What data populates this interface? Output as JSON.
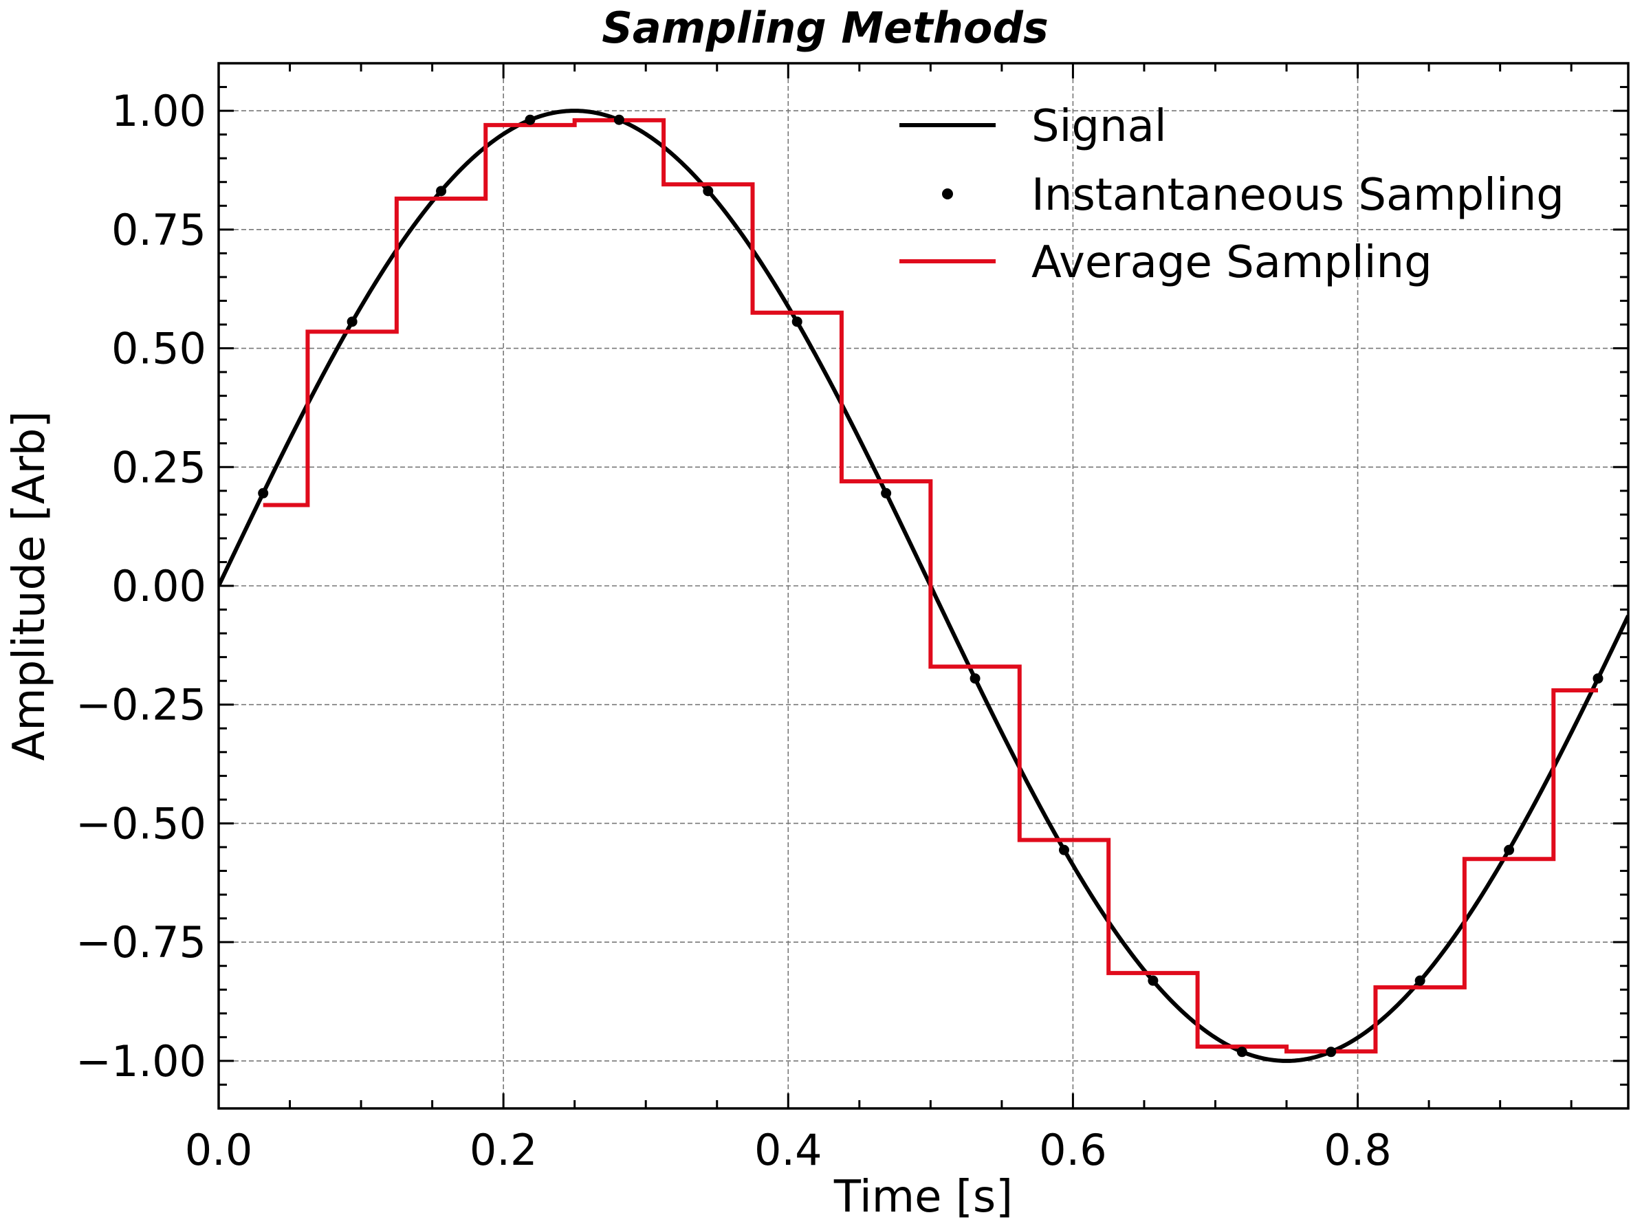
{
  "chart_data": {
    "type": "line",
    "title": "Sampling Methods",
    "xlabel": "Time [s]",
    "ylabel": "Amplitude [Arb]",
    "xlim": [
      0.0,
      0.99
    ],
    "ylim": [
      -1.1,
      1.1
    ],
    "x_ticks": [
      0.0,
      0.2,
      0.4,
      0.6,
      0.8
    ],
    "x_tick_labels": [
      "0.0",
      "0.2",
      "0.4",
      "0.6",
      "0.8"
    ],
    "y_ticks": [
      1.0,
      0.75,
      0.5,
      0.25,
      0.0,
      -0.25,
      -0.5,
      -0.75,
      -1.0
    ],
    "y_tick_labels": [
      "1.00",
      "0.75",
      "0.50",
      "0.25",
      "0.00",
      "−0.25",
      "−0.50",
      "−0.75",
      "−1.00"
    ],
    "grid": true,
    "legend_position": "top-right",
    "series": [
      {
        "name": "Signal",
        "kind": "line",
        "color": "#000000",
        "function": "sin(2*pi*t)",
        "t_range": [
          0.0,
          0.99
        ]
      },
      {
        "name": "Instantaneous Sampling",
        "kind": "scatter",
        "color": "#000000",
        "x": [
          0.03125,
          0.09375,
          0.15625,
          0.21875,
          0.28125,
          0.34375,
          0.40625,
          0.46875,
          0.53125,
          0.59375,
          0.65625,
          0.71875,
          0.78125,
          0.84375,
          0.90625,
          0.96875
        ],
        "y": [
          0.195,
          0.556,
          0.831,
          0.981,
          0.981,
          0.831,
          0.556,
          0.195,
          -0.195,
          -0.556,
          -0.831,
          -0.981,
          -0.981,
          -0.831,
          -0.556,
          -0.195
        ]
      },
      {
        "name": "Average Sampling",
        "kind": "step",
        "color": "#e00b1c",
        "x": [
          0.03125,
          0.0625,
          0.125,
          0.1875,
          0.25,
          0.3125,
          0.375,
          0.4375,
          0.5,
          0.5625,
          0.625,
          0.6875,
          0.75,
          0.8125,
          0.875,
          0.9375,
          0.96875
        ],
        "y": [
          0.17,
          0.535,
          0.815,
          0.97,
          0.98,
          0.845,
          0.575,
          0.22,
          -0.17,
          -0.535,
          -0.815,
          -0.97,
          -0.98,
          -0.845,
          -0.575,
          -0.22,
          -0.22
        ]
      }
    ]
  }
}
